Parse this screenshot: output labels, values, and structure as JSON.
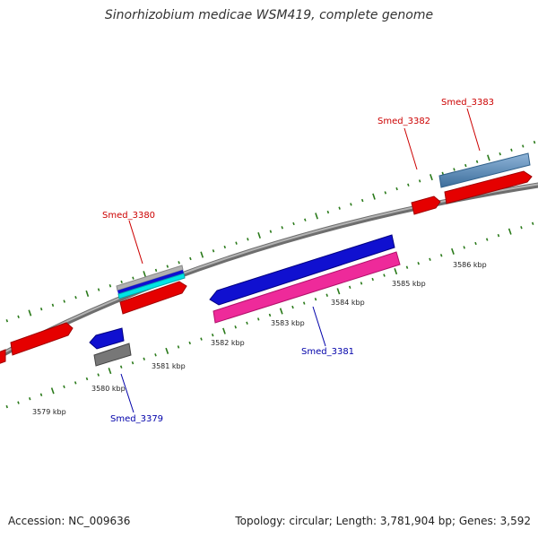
{
  "title": "Sinorhizobium medicae WSM419, complete genome",
  "footer": {
    "accession": "Accession: NC_009636",
    "topology": "Topology: circular; Length: 3,781,904 bp; Genes: 3,592"
  },
  "colors": {
    "backbone": "#8a8a8a",
    "tick": "#2a7a1a",
    "forward_label": "#cc0000",
    "reverse_label": "#0000aa"
  },
  "ruler": [
    {
      "label": "3579 kbp"
    },
    {
      "label": "3580 kbp"
    },
    {
      "label": "3581 kbp"
    },
    {
      "label": "3582 kbp"
    },
    {
      "label": "3583 kbp"
    },
    {
      "label": "3584 kbp"
    },
    {
      "label": "3585 kbp"
    },
    {
      "label": "3586 kbp"
    }
  ],
  "gene_labels": [
    {
      "text": "Smed_3380",
      "strand": "forward"
    },
    {
      "text": "Smed_3382",
      "strand": "forward"
    },
    {
      "text": "Smed_3383",
      "strand": "forward"
    },
    {
      "text": "Smed_3381",
      "strand": "reverse"
    },
    {
      "text": "Smed_3379",
      "strand": "reverse"
    }
  ]
}
